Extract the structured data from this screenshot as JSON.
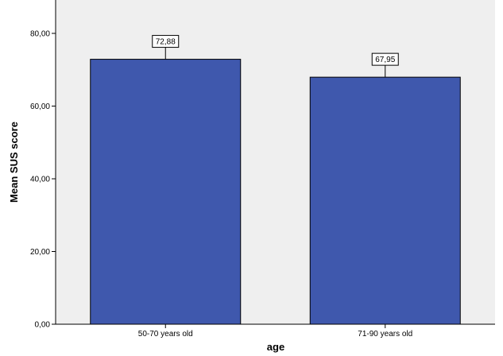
{
  "chart_data": {
    "type": "bar",
    "categories": [
      "50-70 years old",
      "71-90 years old"
    ],
    "values": [
      72.88,
      67.95
    ],
    "value_labels": [
      "72,88",
      "67,95"
    ],
    "xlabel": "age",
    "ylabel": "Mean SUS score",
    "ylim": [
      0,
      80
    ],
    "yticks": [
      0,
      20,
      40,
      60,
      80
    ],
    "ytick_labels": [
      "0,00",
      "20,00",
      "40,00",
      "60,00",
      "80,00"
    ],
    "grid": false,
    "legend": "none",
    "colors": {
      "bar": "#3f58ad",
      "plot_background": "#efefef",
      "axis": "#000000"
    }
  }
}
